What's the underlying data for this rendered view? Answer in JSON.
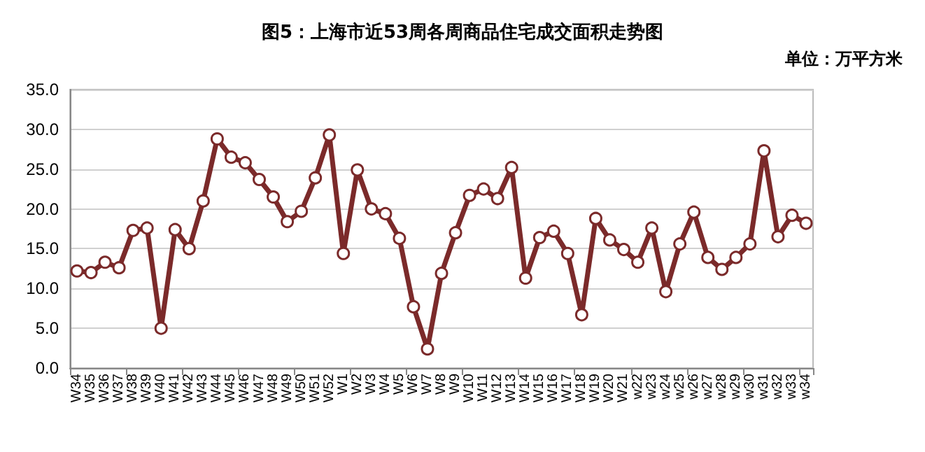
{
  "chart_data": {
    "type": "line",
    "title": "图5：上海市近53周各周商品住宅成交面积走势图",
    "annotations": [
      "单位：万平方米"
    ],
    "categories": [
      "W34",
      "W35",
      "W36",
      "W37",
      "W38",
      "W39",
      "W40",
      "W41",
      "W42",
      "W43",
      "W44",
      "W45",
      "W46",
      "W47",
      "W48",
      "W49",
      "W50",
      "W51",
      "W52",
      "W1",
      "W2",
      "W3",
      "W4",
      "W5",
      "W6",
      "W7",
      "W8",
      "W9",
      "W10",
      "W11",
      "W12",
      "W13",
      "W14",
      "W15",
      "W16",
      "W17",
      "W18",
      "W19",
      "W20",
      "W21",
      "w22",
      "w23",
      "w24",
      "w25",
      "w26",
      "w27",
      "w28",
      "w29",
      "w30",
      "w31",
      "w32",
      "w33",
      "w34"
    ],
    "series": [
      {
        "color": "#7b2a2a",
        "values": [
          12.2,
          12.0,
          13.3,
          12.6,
          17.3,
          17.6,
          5.0,
          17.4,
          15.0,
          21.0,
          28.8,
          26.5,
          25.8,
          23.7,
          21.5,
          18.4,
          19.7,
          23.9,
          29.3,
          14.4,
          24.9,
          20.0,
          19.4,
          16.3,
          7.7,
          2.4,
          11.9,
          17.0,
          21.7,
          22.5,
          21.3,
          25.2,
          11.3,
          16.4,
          17.2,
          14.4,
          6.7,
          18.8,
          16.1,
          14.9,
          13.3,
          17.6,
          9.6,
          15.6,
          19.6,
          13.9,
          12.4,
          13.9,
          15.6,
          27.3,
          16.5,
          19.2,
          18.2
        ]
      }
    ],
    "ylim": [
      0,
      35
    ],
    "yticks": [
      {
        "value": 0,
        "label": "0.0"
      },
      {
        "value": 5,
        "label": "5.0"
      },
      {
        "value": 10,
        "label": "10.0"
      },
      {
        "value": 15,
        "label": "15.0"
      },
      {
        "value": 20,
        "label": "20.0"
      },
      {
        "value": 25,
        "label": "25.0"
      },
      {
        "value": 30,
        "label": "30.0"
      },
      {
        "value": 35,
        "label": "35.0"
      }
    ],
    "grid": "y",
    "marker": "circle",
    "line_style": "solid"
  }
}
